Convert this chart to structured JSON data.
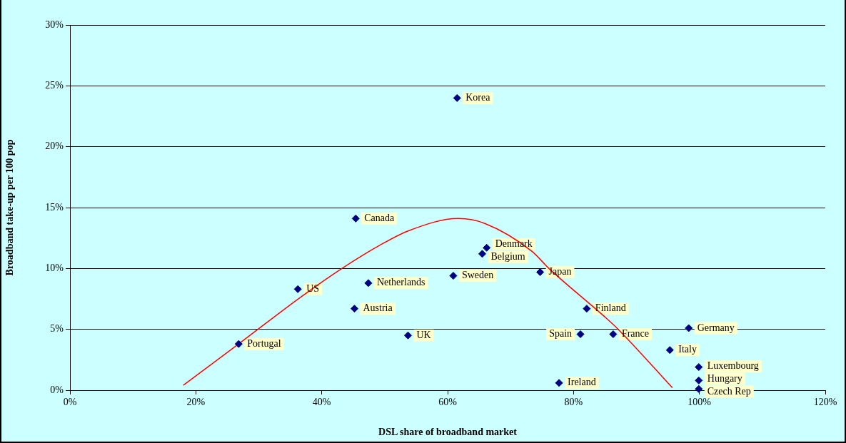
{
  "chart_data": {
    "type": "scatter",
    "xlabel": "DSL share of broadband market",
    "ylabel": "Broadband take-up per 100 pop",
    "xlim": [
      0,
      120
    ],
    "xticks": [
      {
        "value": 0,
        "label": "0%"
      },
      {
        "value": 20,
        "label": "20%"
      },
      {
        "value": 40,
        "label": "40%"
      },
      {
        "value": 60,
        "label": "60%"
      },
      {
        "value": 80,
        "label": "80%"
      },
      {
        "value": 100,
        "label": "100%"
      },
      {
        "value": 120,
        "label": "120%"
      }
    ],
    "ylim": [
      0,
      30
    ],
    "yticks": [
      {
        "value": 0,
        "label": "0%"
      },
      {
        "value": 5,
        "label": "5%"
      },
      {
        "value": 10,
        "label": "10%"
      },
      {
        "value": 15,
        "label": "15%"
      },
      {
        "value": 20,
        "label": "20%"
      },
      {
        "value": 25,
        "label": "25%"
      },
      {
        "value": 30,
        "label": "30%"
      }
    ],
    "grid": "y",
    "legend": false,
    "marker": "diamond",
    "series": [
      {
        "color": "#000080",
        "x": [
          61.5,
          45.4,
          66.2,
          65.5,
          74.7,
          60.9,
          36.2,
          47.4,
          45.2,
          82.1,
          53.7,
          81.1,
          86.3,
          98.3,
          95.3,
          99.9,
          99.9,
          99.9,
          77.7,
          26.8
        ],
        "values": [
          24.0,
          14.1,
          11.7,
          11.2,
          9.7,
          9.4,
          8.3,
          8.8,
          6.7,
          6.7,
          4.5,
          4.6,
          4.6,
          5.1,
          3.3,
          1.9,
          0.8,
          0.1,
          0.6,
          3.8
        ]
      },
      {
        "type": "line",
        "color": "#ff0000",
        "marker": "none",
        "x": [
          18.0,
          26.8,
          36.8,
          43.2,
          49.2,
          53.8,
          61.7,
          65.9,
          73.4,
          76.1,
          84.8,
          87.1,
          95.7
        ],
        "values": [
          0.4,
          3.8,
          7.7,
          10.0,
          11.9,
          13.1,
          14.1,
          13.7,
          11.4,
          10.0,
          6.1,
          5.0,
          0.2
        ]
      }
    ],
    "annotations": [
      {
        "text": "Korea",
        "x": 61.5,
        "y": 24.0
      },
      {
        "text": "Canada",
        "x": 45.4,
        "y": 14.1
      },
      {
        "text": "Denmark",
        "x": 66.2,
        "y": 11.7
      },
      {
        "text": "Belgium",
        "x": 65.5,
        "y": 11.2
      },
      {
        "text": "Japan",
        "x": 74.7,
        "y": 9.7
      },
      {
        "text": "Sweden",
        "x": 60.9,
        "y": 9.4
      },
      {
        "text": "US",
        "x": 36.2,
        "y": 8.3
      },
      {
        "text": "Netherlands",
        "x": 47.4,
        "y": 8.8
      },
      {
        "text": "Austria",
        "x": 45.2,
        "y": 6.7
      },
      {
        "text": "Finland",
        "x": 82.1,
        "y": 6.7
      },
      {
        "text": "UK",
        "x": 53.7,
        "y": 4.5
      },
      {
        "text": "Spain",
        "x": 81.1,
        "y": 4.6
      },
      {
        "text": "France",
        "x": 86.3,
        "y": 4.6
      },
      {
        "text": "Germany",
        "x": 98.3,
        "y": 5.1
      },
      {
        "text": "Italy",
        "x": 95.3,
        "y": 3.3
      },
      {
        "text": "Luxembourg",
        "x": 99.9,
        "y": 1.9
      },
      {
        "text": "Hungary",
        "x": 99.9,
        "y": 0.8
      },
      {
        "text": "Czech Rep",
        "x": 99.9,
        "y": 0.1
      },
      {
        "text": "Ireland",
        "x": 77.7,
        "y": 0.6
      },
      {
        "text": "Portugal",
        "x": 26.8,
        "y": 3.8
      }
    ]
  }
}
